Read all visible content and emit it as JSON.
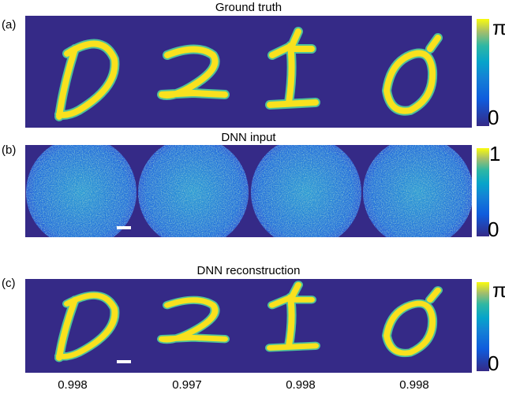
{
  "panels": [
    {
      "label": "(a)",
      "title": "Ground truth",
      "colorbar": {
        "top": "π",
        "bottom": "0"
      }
    },
    {
      "label": "(b)",
      "title": "DNN input",
      "colorbar": {
        "top": "1",
        "bottom": "0"
      }
    },
    {
      "label": "(c)",
      "title": "DNN reconstruction",
      "colorbar": {
        "top": "π",
        "bottom": "0"
      }
    }
  ],
  "scores": [
    "0.998",
    "0.997",
    "0.998",
    "0.998"
  ]
}
